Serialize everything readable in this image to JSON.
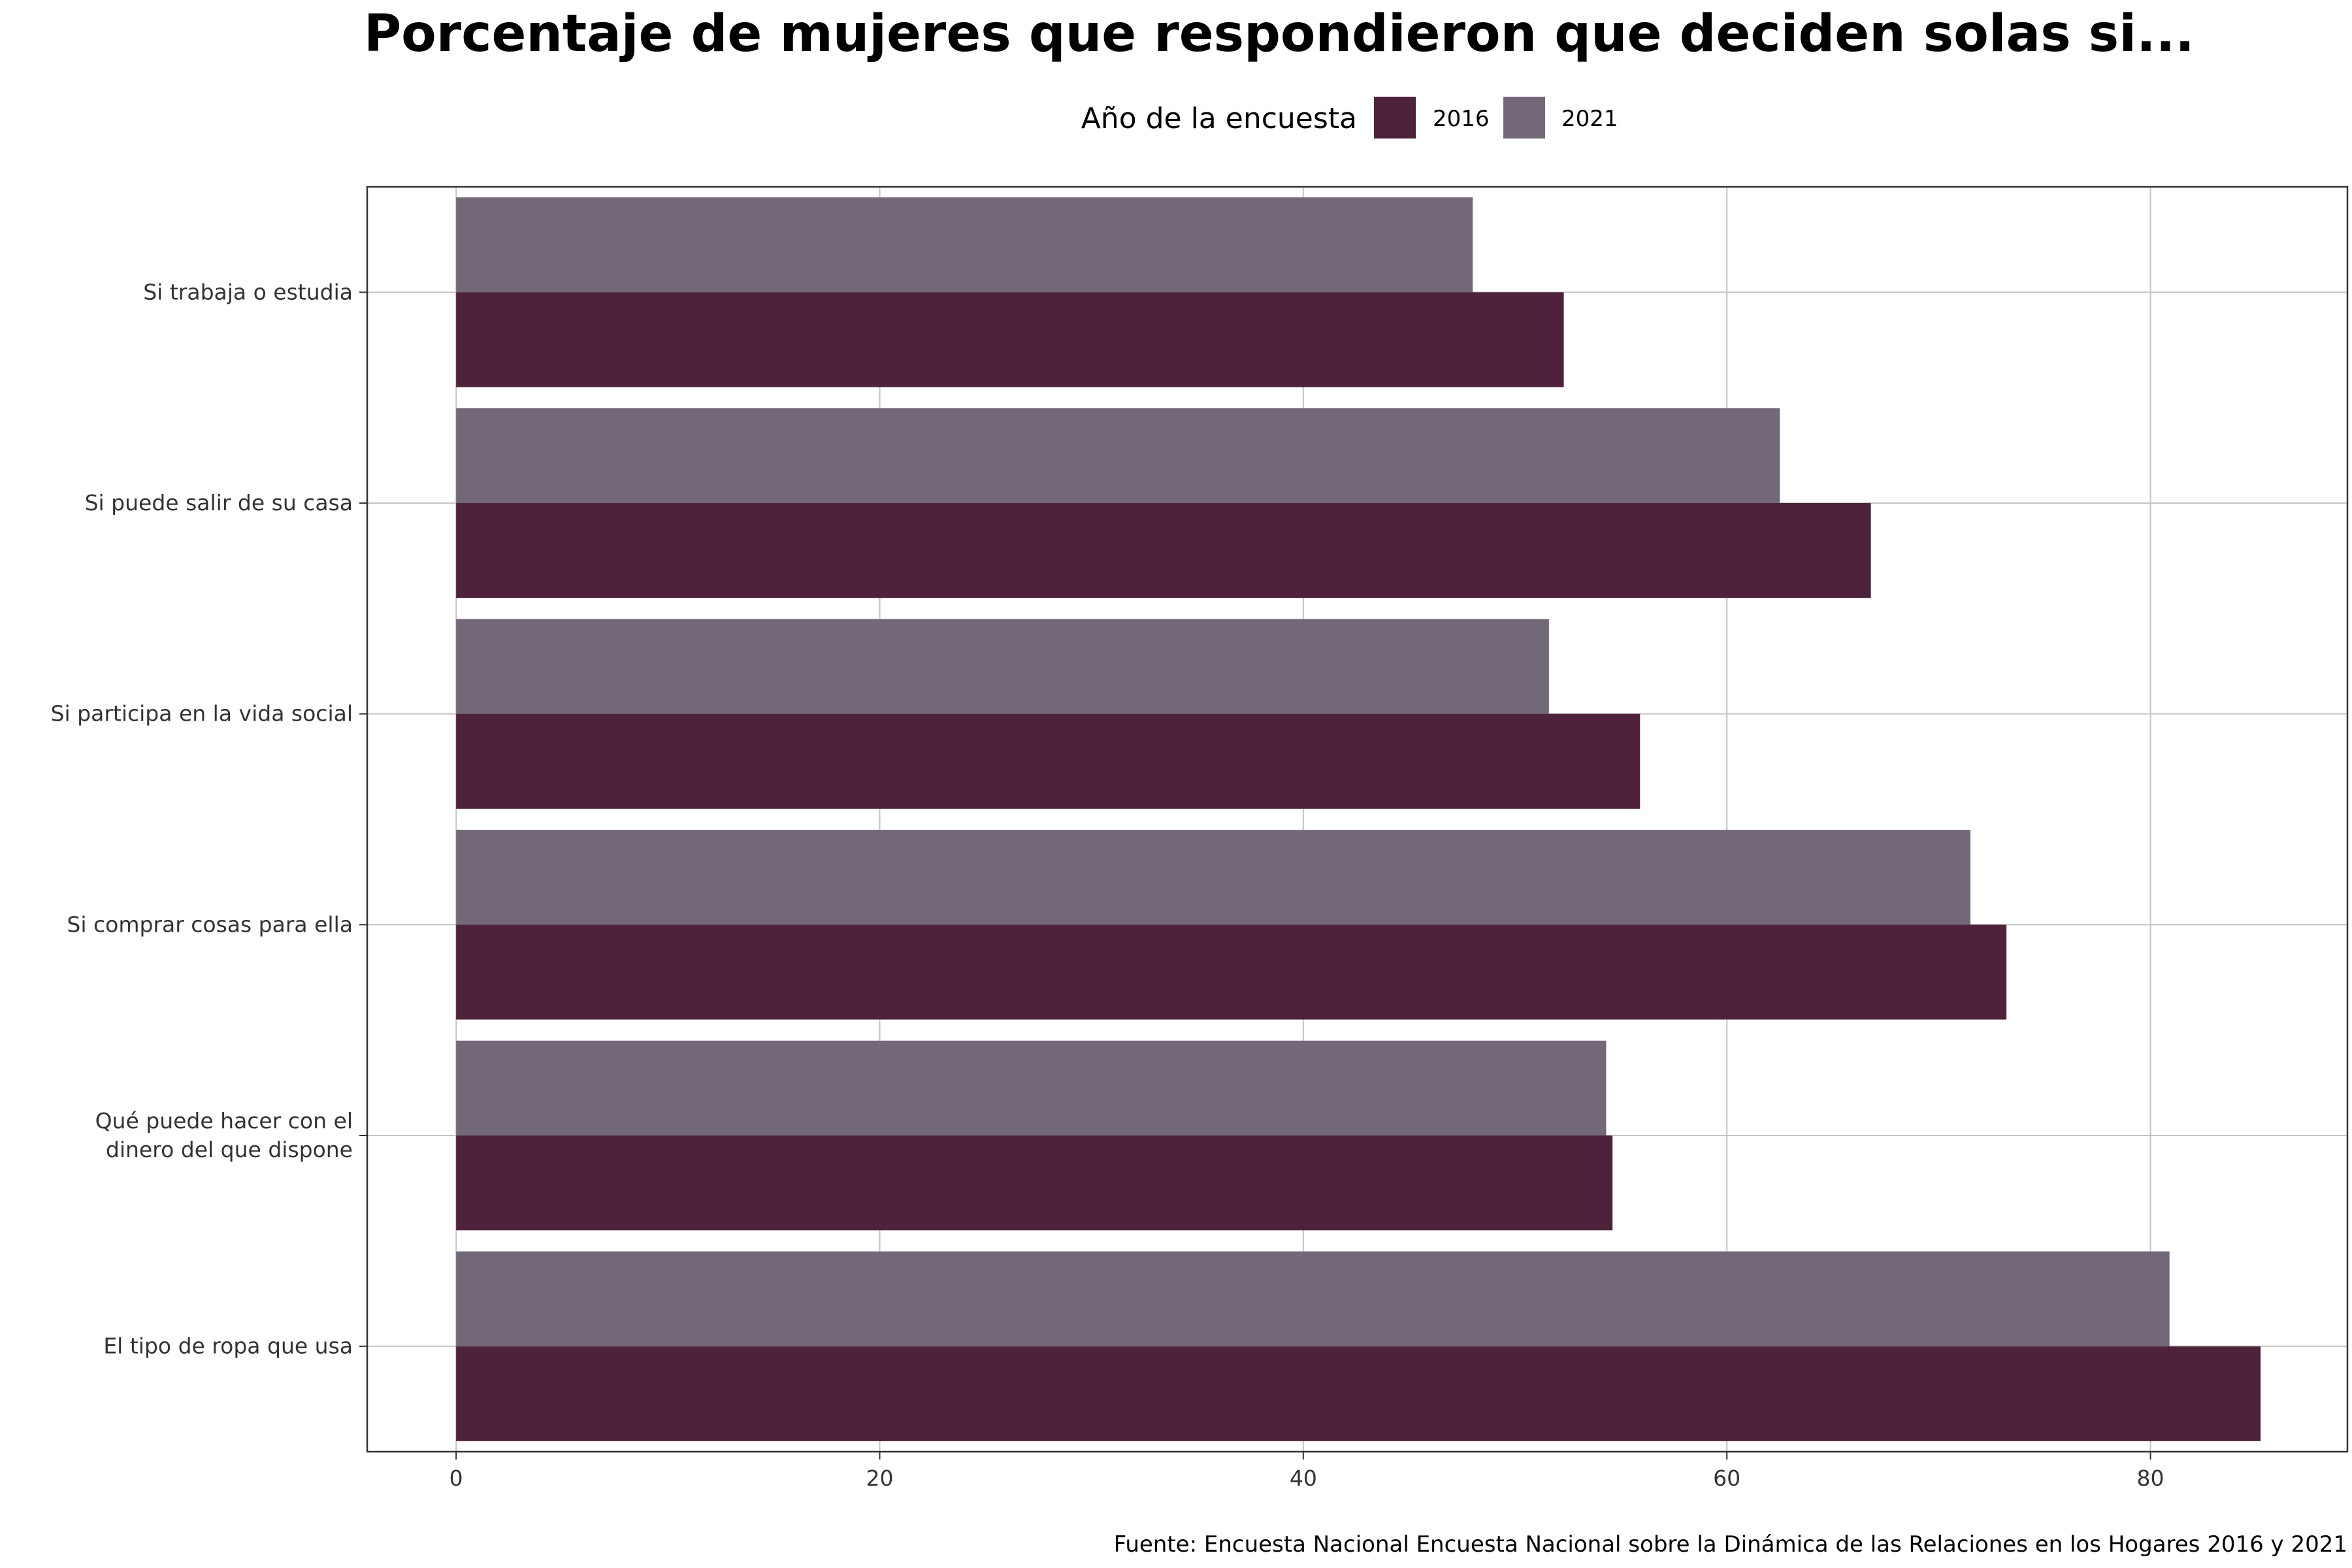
{
  "chart_data": {
    "type": "bar",
    "orientation": "horizontal",
    "title": "Porcentaje de mujeres que respondieron que deciden solas si...",
    "caption": "Fuente: Encuesta Nacional Encuesta Nacional sobre la Dinámica de las Relaciones en los Hogares 2016 y 2021",
    "legend": {
      "title": "Año de la encuesta",
      "position": "top",
      "items": [
        {
          "label": "2016",
          "color": "#4f223b"
        },
        {
          "label": "2021",
          "color": "#736878"
        }
      ]
    },
    "categories": [
      "Si trabaja o estudia",
      "Si puede salir de su casa",
      "Si participa en la vida social",
      "Si comprar cosas para ella",
      "Qué puede hacer con el\ndinero del que dispone",
      "El tipo de ropa que usa"
    ],
    "series": [
      {
        "name": "2016",
        "color": "#4f223b",
        "values": [
          52.3,
          66.8,
          55.9,
          73.2,
          54.6,
          85.2
        ]
      },
      {
        "name": "2021",
        "color": "#736878",
        "values": [
          48.0,
          62.5,
          51.6,
          71.5,
          54.3,
          80.9
        ]
      }
    ],
    "xticks": [
      0,
      20,
      40,
      60,
      80
    ],
    "xlim": [
      -4.2,
      89.3
    ],
    "xlabel": "",
    "ylabel": "",
    "grid": true
  }
}
